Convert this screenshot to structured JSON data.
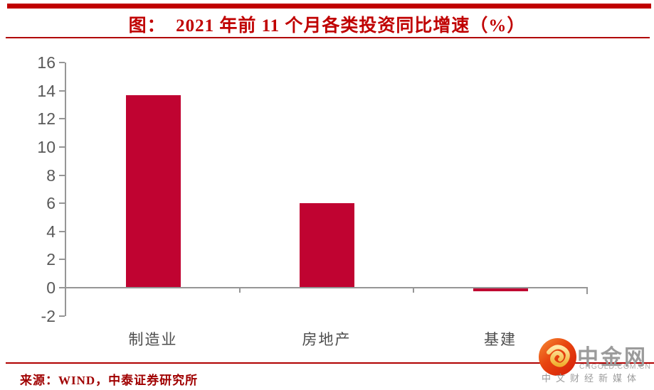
{
  "title": "图：  2021 年前 11 个月各类投资同比增速（%）",
  "source": "来源：WIND，中泰证券研究所",
  "logo": {
    "name": "中金网",
    "domain": "CNGOLD.COM.CN",
    "tagline": "中文财经新媒体",
    "icon": "gold-cloud-swirl-in-red-circle"
  },
  "colors": {
    "accent_red": "#C00000",
    "rule_red": "#B00000",
    "source_red": "#A00000",
    "bar_red": "#C00331",
    "axis_gray": "#969696",
    "tick_label_gray": "#595959",
    "category_label_gray": "#4d4d4d",
    "logo_gray": "#9B9B9B",
    "logo_orange": "#E8450F",
    "logo_gold": "#F8C04A"
  },
  "chart_data": {
    "type": "bar",
    "categories": [
      "制造业",
      "房地产",
      "基建"
    ],
    "values": [
      13.7,
      6.0,
      -0.2
    ],
    "title": "2021 年前 11 个月各类投资同比增速（%）",
    "xlabel": "",
    "ylabel": "",
    "ylim": [
      -2,
      16
    ],
    "yticks": [
      16,
      14,
      12,
      10,
      8,
      6,
      4,
      2,
      0,
      -2
    ],
    "grid": false,
    "legend": "none",
    "bar_color": "#C00331"
  }
}
